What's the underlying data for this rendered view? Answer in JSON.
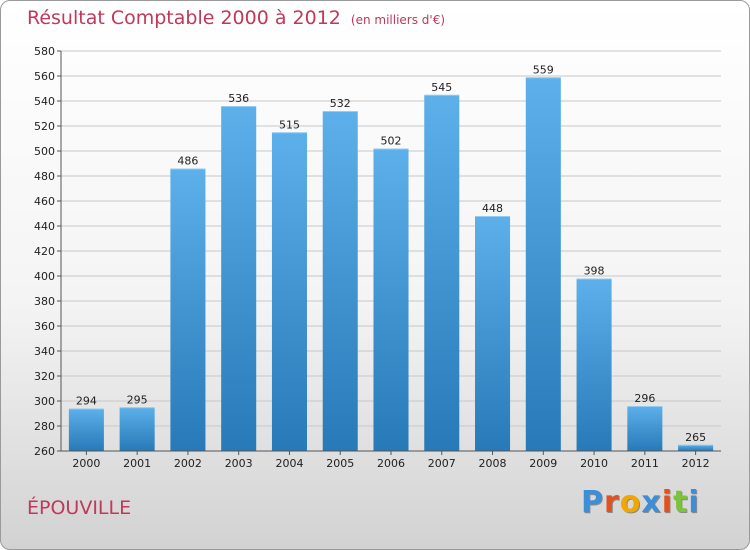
{
  "chart_data": {
    "type": "bar",
    "title": "Résultat Comptable 2000 à 2012",
    "unit_note": "(en milliers d'€)",
    "categories": [
      "2000",
      "2001",
      "2002",
      "2003",
      "2004",
      "2005",
      "2006",
      "2007",
      "2008",
      "2009",
      "2010",
      "2011",
      "2012"
    ],
    "values": [
      294,
      295,
      486,
      536,
      515,
      532,
      502,
      545,
      448,
      559,
      398,
      296,
      265
    ],
    "ylim": [
      260,
      580
    ],
    "yticks": [
      260,
      280,
      300,
      320,
      340,
      360,
      380,
      400,
      420,
      440,
      460,
      480,
      500,
      520,
      540,
      560,
      580
    ],
    "grid": true,
    "xlabel": "",
    "ylabel": ""
  },
  "location": "ÉPOUVILLE",
  "brand": {
    "letters": [
      "P",
      "r",
      "o",
      "x",
      "i",
      "t",
      "i"
    ],
    "colors": [
      "#3c8ed6",
      "#e0521f",
      "#f2a600",
      "#3c8ed6",
      "#e0521f",
      "#7cc23a",
      "#3c8ed6"
    ]
  },
  "colors": {
    "bar_top": "#5db0ea",
    "bar_bottom": "#2879b8",
    "title": "#c0385a"
  }
}
